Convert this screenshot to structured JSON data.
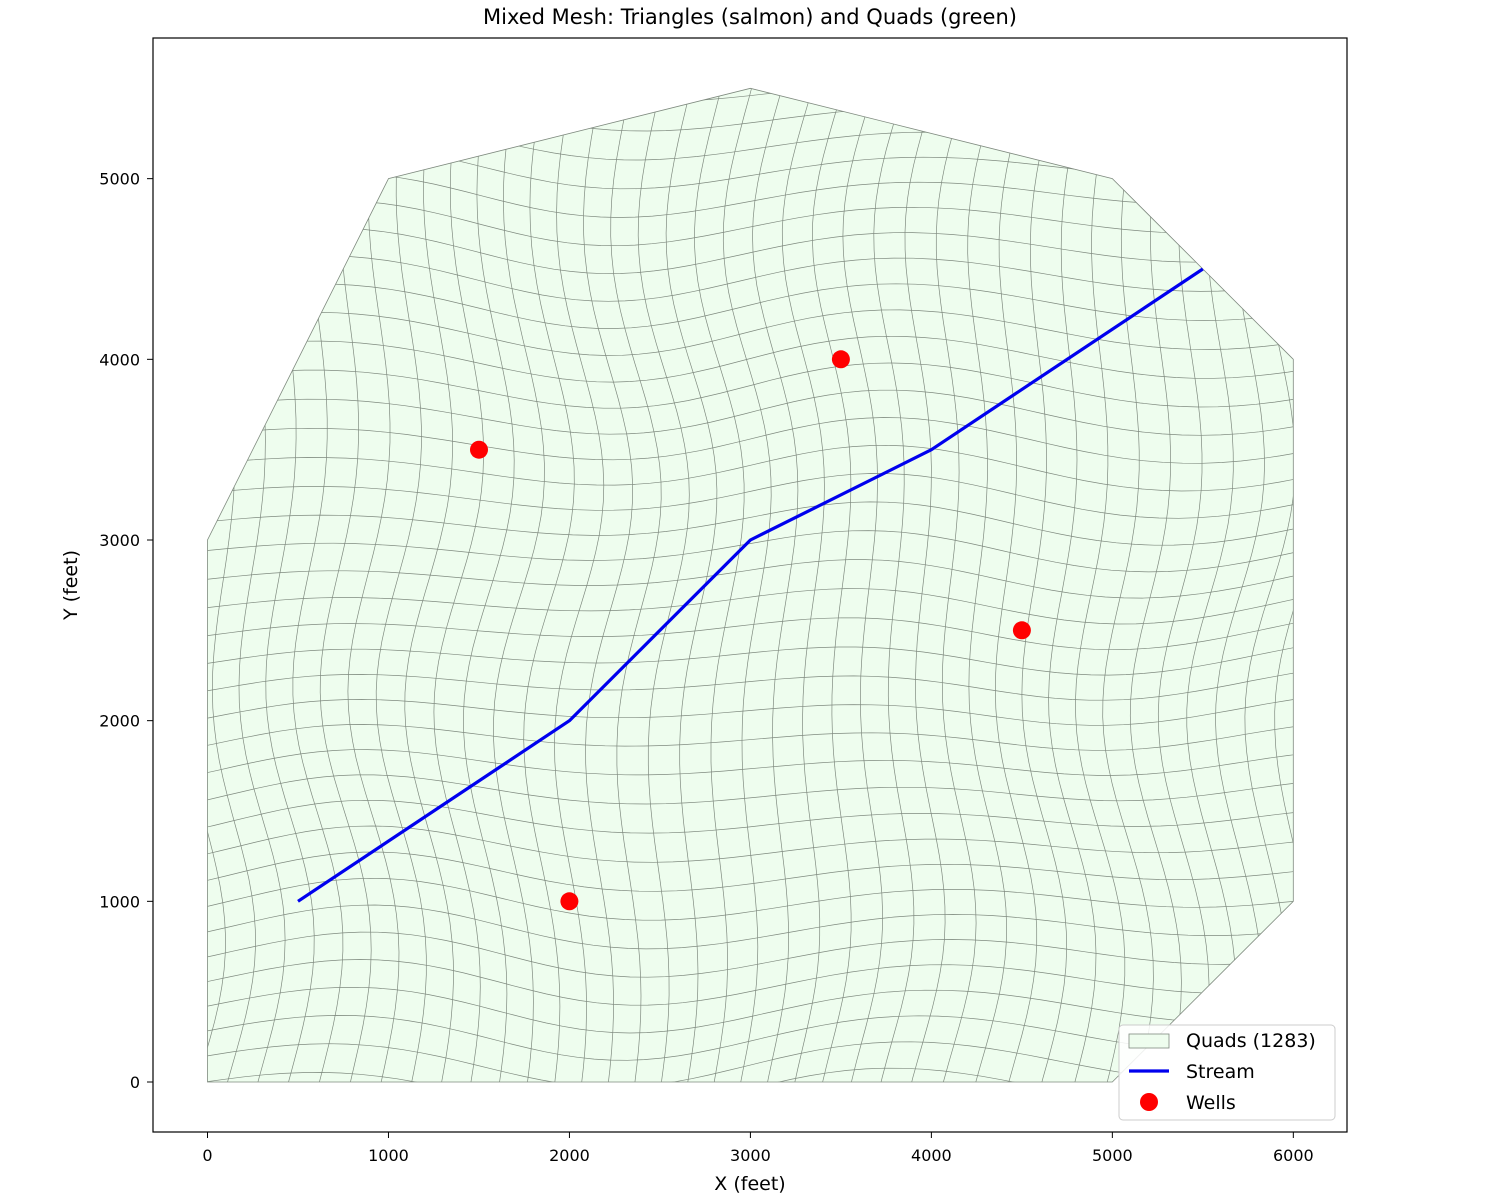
{
  "chart_data": {
    "type": "scatter",
    "title": "Mixed Mesh: Triangles (salmon) and Quads (green)",
    "xlabel": "X (feet)",
    "ylabel": "Y (feet)",
    "xlim": [
      -300,
      6300
    ],
    "ylim": [
      -270,
      5800
    ],
    "xticks": [
      0,
      1000,
      2000,
      3000,
      4000,
      5000,
      6000
    ],
    "yticks": [
      0,
      1000,
      2000,
      3000,
      4000,
      5000
    ],
    "xtick_labels": [
      "0",
      "1000",
      "2000",
      "3000",
      "4000",
      "5000",
      "6000"
    ],
    "ytick_labels": [
      "0",
      "1000",
      "2000",
      "3000",
      "4000",
      "5000"
    ],
    "grid": false,
    "legend_position": "lower-right",
    "domain_boundary": [
      [
        0,
        0
      ],
      [
        5000,
        0
      ],
      [
        6000,
        1000
      ],
      [
        6000,
        4000
      ],
      [
        5000,
        5000
      ],
      [
        3000,
        5500
      ],
      [
        1000,
        5000
      ],
      [
        0,
        3000
      ]
    ],
    "mesh": {
      "quad_count": 1283,
      "fill_color": "#eefdee",
      "edge_color": "#7f8a7f"
    },
    "series": [
      {
        "name": "Quads (1283)",
        "kind": "polygon-fill",
        "color": "#eefdee"
      },
      {
        "name": "Stream",
        "kind": "line",
        "color": "#0000ee",
        "points": [
          [
            500,
            1000
          ],
          [
            2000,
            2000
          ],
          [
            3000,
            3000
          ],
          [
            4000,
            3500
          ],
          [
            5500,
            4500
          ]
        ]
      },
      {
        "name": "Wells",
        "kind": "scatter",
        "color": "#ff0000",
        "points": [
          [
            2000,
            1000
          ],
          [
            1500,
            3500
          ],
          [
            3500,
            4000
          ],
          [
            4500,
            2500
          ]
        ]
      }
    ]
  }
}
